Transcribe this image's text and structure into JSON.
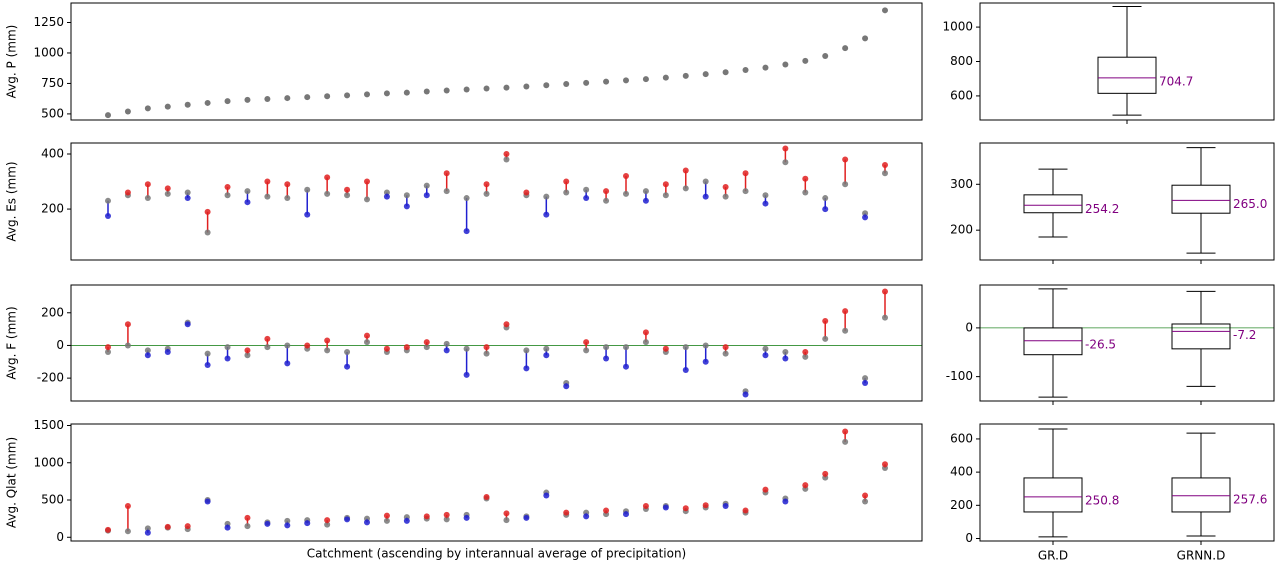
{
  "chart_data": [
    {
      "type": "scatter",
      "y_label": "Avg. P (mm)",
      "ylim": [
        450,
        1410
      ],
      "yticks": [
        500,
        750,
        1000,
        1250
      ],
      "series": [
        {
          "color": "#777777",
          "values": [
            490,
            520,
            545,
            560,
            575,
            590,
            605,
            615,
            622,
            630,
            638,
            645,
            652,
            660,
            668,
            675,
            684,
            692,
            700,
            708,
            716,
            725,
            735,
            745,
            755,
            765,
            775,
            785,
            798,
            812,
            826,
            842,
            860,
            880,
            905,
            935,
            975,
            1040,
            1120,
            1350
          ]
        }
      ]
    },
    {
      "type": "paired",
      "y_label": "Avg. Es (mm)",
      "ylim": [
        15,
        440
      ],
      "yticks": [
        200,
        400
      ],
      "colors": {
        "base": "#777777",
        "up": "#e02020",
        "down": "#2020d0"
      },
      "series": [
        {
          "values": [
            230,
            250,
            240,
            255,
            260,
            115,
            250,
            265,
            245,
            240,
            270,
            255,
            250,
            235,
            260,
            250,
            285,
            265,
            240,
            255,
            380,
            250,
            245,
            260,
            270,
            230,
            255,
            265,
            250,
            275,
            300,
            245,
            265,
            250,
            370,
            260,
            240,
            290,
            185,
            330
          ]
        },
        {
          "values": [
            175,
            260,
            290,
            275,
            240,
            190,
            280,
            225,
            300,
            290,
            180,
            315,
            270,
            300,
            245,
            210,
            250,
            330,
            120,
            290,
            400,
            260,
            180,
            300,
            240,
            265,
            320,
            230,
            290,
            340,
            245,
            280,
            330,
            220,
            420,
            310,
            200,
            380,
            170,
            360
          ]
        }
      ]
    },
    {
      "type": "paired",
      "y_label": "Avg. F (mm)",
      "ylim": [
        -340,
        370
      ],
      "yticks": [
        -200,
        0,
        200
      ],
      "hline": 0,
      "hline_color": "#2a8a2a",
      "colors": {
        "base": "#777777",
        "up": "#e02020",
        "down": "#2020d0"
      },
      "series": [
        {
          "values": [
            -40,
            0,
            -30,
            -20,
            140,
            -50,
            -10,
            -60,
            -10,
            0,
            -20,
            -30,
            -40,
            20,
            -40,
            -30,
            -10,
            10,
            -20,
            -50,
            110,
            -30,
            -20,
            -230,
            -30,
            -10,
            -10,
            20,
            -40,
            -10,
            0,
            -50,
            -280,
            -20,
            -40,
            -70,
            40,
            90,
            -200,
            170
          ]
        },
        {
          "values": [
            -10,
            130,
            -60,
            -40,
            130,
            -120,
            -80,
            -30,
            40,
            -110,
            0,
            30,
            -130,
            60,
            -20,
            -10,
            20,
            -30,
            -180,
            -10,
            130,
            -140,
            -60,
            -250,
            20,
            -80,
            -130,
            80,
            -20,
            -150,
            -100,
            -10,
            -300,
            -60,
            -80,
            -40,
            150,
            210,
            -230,
            330
          ]
        }
      ]
    },
    {
      "type": "paired",
      "y_label": "Avg. Qlat (mm)",
      "x_label": "Catchment (ascending by interannual average of precipitation)",
      "ylim": [
        -50,
        1520
      ],
      "yticks": [
        0,
        500,
        1000,
        1500
      ],
      "colors": {
        "base": "#777777",
        "up": "#e02020",
        "down": "#2020d0"
      },
      "series": [
        {
          "values": [
            90,
            80,
            120,
            130,
            110,
            500,
            180,
            150,
            200,
            220,
            230,
            170,
            260,
            250,
            220,
            270,
            250,
            240,
            300,
            520,
            230,
            280,
            600,
            300,
            330,
            310,
            350,
            380,
            420,
            350,
            400,
            450,
            330,
            600,
            520,
            650,
            800,
            1280,
            480,
            930
          ]
        },
        {
          "values": [
            100,
            420,
            60,
            140,
            150,
            480,
            130,
            260,
            180,
            160,
            190,
            230,
            240,
            200,
            290,
            220,
            280,
            300,
            260,
            540,
            320,
            260,
            560,
            330,
            280,
            360,
            310,
            420,
            400,
            390,
            430,
            420,
            360,
            640,
            480,
            700,
            850,
            1420,
            560,
            980
          ]
        }
      ]
    },
    {
      "type": "box",
      "ylim": [
        460,
        1140
      ],
      "yticks": [
        600,
        800,
        1000
      ],
      "median_color": "#800080",
      "min": [
        488
      ],
      "q1": [
        615
      ],
      "median": [
        704.7
      ],
      "q3": [
        825
      ],
      "max": [
        1120
      ],
      "median_labels": [
        "704.7"
      ]
    },
    {
      "type": "box",
      "ylim": [
        135,
        390
      ],
      "yticks": [
        200,
        300
      ],
      "median_color": "#800080",
      "min": [
        185,
        150
      ],
      "q1": [
        238,
        237
      ],
      "median": [
        254.2,
        265.0
      ],
      "q3": [
        277,
        298
      ],
      "max": [
        333,
        380
      ],
      "median_labels": [
        "254.2",
        "265.0"
      ]
    },
    {
      "type": "box",
      "ylim": [
        -150,
        88
      ],
      "yticks": [
        -100,
        0
      ],
      "hline": 0,
      "hline_color": "#2a8a2a",
      "median_color": "#800080",
      "min": [
        -142,
        -120
      ],
      "q1": [
        -55,
        -43
      ],
      "median": [
        -26.5,
        -7.2
      ],
      "q3": [
        0,
        8
      ],
      "max": [
        80,
        75
      ],
      "median_labels": [
        "-26.5",
        "-7.2"
      ]
    },
    {
      "type": "box",
      "ylim": [
        -15,
        690
      ],
      "yticks": [
        0,
        200,
        400,
        600
      ],
      "median_color": "#800080",
      "min": [
        10,
        15
      ],
      "q1": [
        160,
        160
      ],
      "median": [
        250.8,
        257.6
      ],
      "q3": [
        365,
        365
      ],
      "max": [
        660,
        635
      ],
      "median_labels": [
        "250.8",
        "257.6"
      ],
      "categories": [
        "GR.D",
        "GRNN.D"
      ]
    }
  ]
}
